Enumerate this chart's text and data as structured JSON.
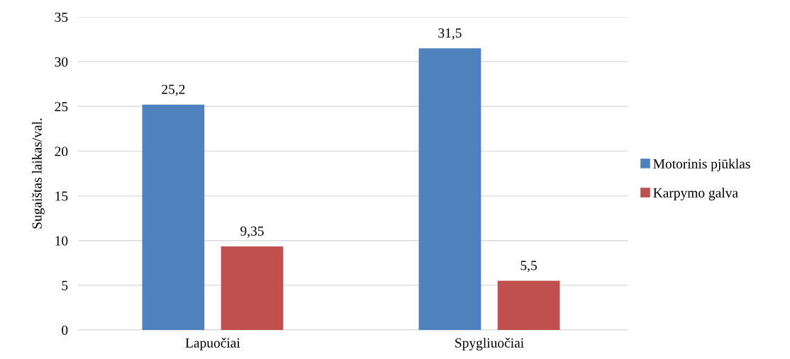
{
  "chart_data": {
    "type": "bar",
    "ylabel": "Sugaištas laikas/val.",
    "categories": [
      "Lapuočiai",
      "Spygliuočiai"
    ],
    "series": [
      {
        "name": "Motorinis pjūklas",
        "color": "#4f81bd",
        "values": [
          25.2,
          31.5
        ],
        "value_labels": [
          "25,2",
          "31,5"
        ]
      },
      {
        "name": "Karpymo galva",
        "color": "#c0504d",
        "values": [
          9.35,
          5.5
        ],
        "value_labels": [
          "9,35",
          "5,5"
        ]
      }
    ],
    "ylim": [
      0,
      35
    ],
    "yticks": [
      0,
      5,
      10,
      15,
      20,
      25,
      30,
      35
    ],
    "grid": "y",
    "legend": "right"
  }
}
